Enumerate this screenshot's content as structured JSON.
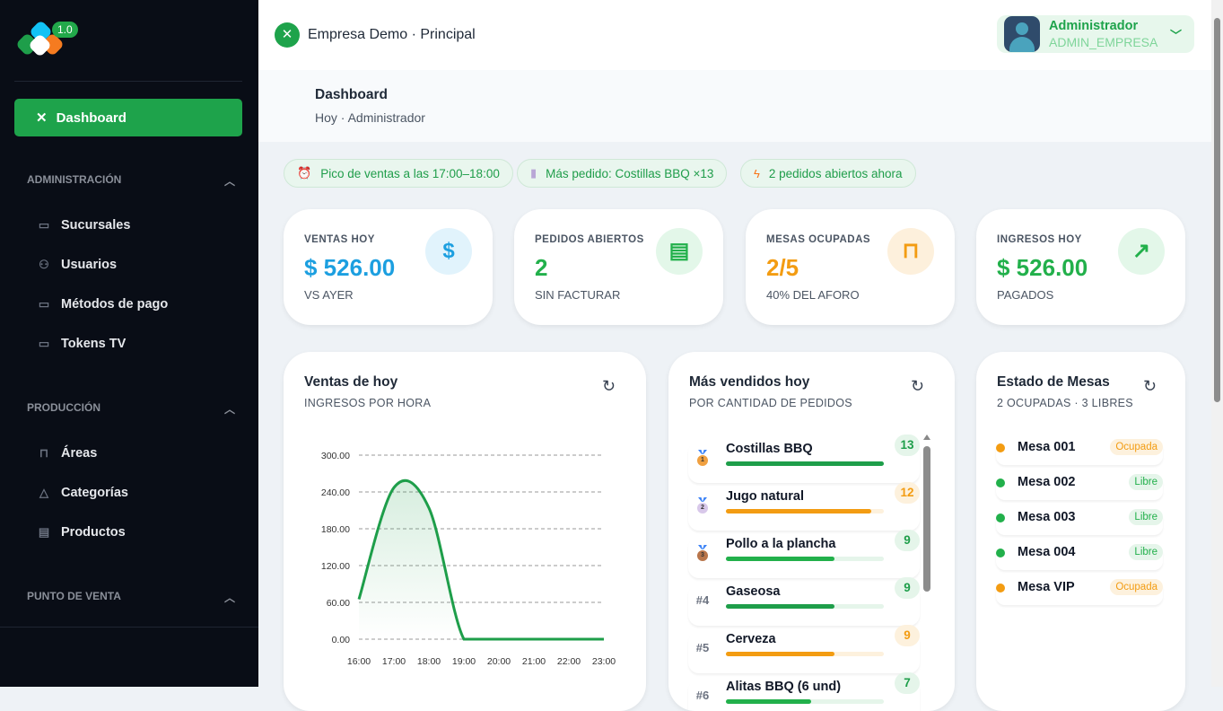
{
  "sidebar": {
    "version": "1.0",
    "dashboard_label": "Dashboard",
    "sections": [
      {
        "title": "ADMINISTRACIÓN",
        "items": [
          {
            "label": "Sucursales",
            "icon": "store-icon"
          },
          {
            "label": "Usuarios",
            "icon": "users-icon"
          },
          {
            "label": "Métodos de pago",
            "icon": "credit-card-icon"
          },
          {
            "label": "Tokens TV",
            "icon": "tv-icon"
          }
        ]
      },
      {
        "title": "PRODUCCIÓN",
        "items": [
          {
            "label": "Áreas",
            "icon": "table-icon"
          },
          {
            "label": "Categorías",
            "icon": "shapes-icon"
          },
          {
            "label": "Productos",
            "icon": "archive-icon"
          }
        ]
      },
      {
        "title": "PUNTO DE VENTA",
        "items": []
      }
    ]
  },
  "header": {
    "company": "Empresa Demo · Principal",
    "user_name": "Administrador",
    "user_role": "ADMIN_EMPRESA"
  },
  "page": {
    "title": "Dashboard",
    "subtitle": "Hoy · Administrador"
  },
  "chips": [
    {
      "icon": "alarm-clock-icon",
      "text": "Pico de ventas a las 17:00–18:00"
    },
    {
      "icon": "plate-icon",
      "text": "Más pedido: Costillas BBQ ×13"
    },
    {
      "icon": "lightning-icon",
      "text": "2 pedidos abiertos ahora"
    }
  ],
  "kpis": [
    {
      "label": "VENTAS HOY",
      "value": "$ 526.00",
      "sub": "VS AYER",
      "color": "#1c9fe0",
      "icon": "dollar-icon"
    },
    {
      "label": "PEDIDOS ABIERTOS",
      "value": "2",
      "sub": "SIN FACTURAR",
      "color": "#22b04b",
      "icon": "receipt-icon"
    },
    {
      "label": "MESAS OCUPADAS",
      "value": "2/5",
      "sub": "40% DEL AFORO",
      "color": "#f39c12",
      "icon": "table-icon"
    },
    {
      "label": "INGRESOS HOY",
      "value": "$ 526.00",
      "sub": "PAGADOS",
      "color": "#22b04b",
      "icon": "trending-up-icon"
    }
  ],
  "sales_card": {
    "title": "Ventas de hoy",
    "subtitle": "INGRESOS POR HORA"
  },
  "chart_data": {
    "type": "area",
    "title": "Ventas de hoy",
    "x": [
      "16:00",
      "17:00",
      "18:00",
      "19:00",
      "20:00",
      "21:00",
      "22:00",
      "23:00"
    ],
    "series": [
      {
        "name": "Ingresos",
        "values": [
          65,
          247,
          214,
          0,
          0,
          0,
          0,
          0
        ]
      }
    ],
    "yticks": [
      "0.00",
      "60.00",
      "120.00",
      "180.00",
      "240.00",
      "300.00"
    ],
    "ylim": [
      0,
      300
    ],
    "grid": true,
    "color": "#1e9e4a"
  },
  "top_card": {
    "title": "Más vendidos hoy",
    "subtitle": "POR CANTIDAD DE PEDIDOS"
  },
  "products": [
    {
      "rank": "1",
      "name": "Costillas BBQ",
      "count": "13",
      "fraction": 1.0,
      "color": "#1e9e4a",
      "medal": "#f0a040"
    },
    {
      "rank": "2",
      "name": "Jugo natural",
      "count": "12",
      "fraction": 0.92,
      "color": "#f39c12",
      "medal": "#d8c8ea"
    },
    {
      "rank": "3",
      "name": "Pollo a la plancha",
      "count": "9",
      "fraction": 0.69,
      "color": "#22b04b",
      "medal": "#b8754a"
    },
    {
      "rank": "#4",
      "name": "Gaseosa",
      "count": "9",
      "fraction": 0.69,
      "color": "#1e9e4a"
    },
    {
      "rank": "#5",
      "name": "Cerveza",
      "count": "9",
      "fraction": 0.69,
      "color": "#f39c12"
    },
    {
      "rank": "#6",
      "name": "Alitas BBQ (6 und)",
      "count": "7",
      "fraction": 0.54,
      "color": "#22b04b"
    }
  ],
  "tables_card": {
    "title": "Estado de Mesas",
    "subtitle": "2 OCUPADAS · 3 LIBRES"
  },
  "tables": [
    {
      "name": "Mesa 001",
      "status": "Ocupada"
    },
    {
      "name": "Mesa 002",
      "status": "Libre"
    },
    {
      "name": "Mesa 003",
      "status": "Libre"
    },
    {
      "name": "Mesa 004",
      "status": "Libre"
    },
    {
      "name": "Mesa VIP",
      "status": "Ocupada"
    }
  ]
}
